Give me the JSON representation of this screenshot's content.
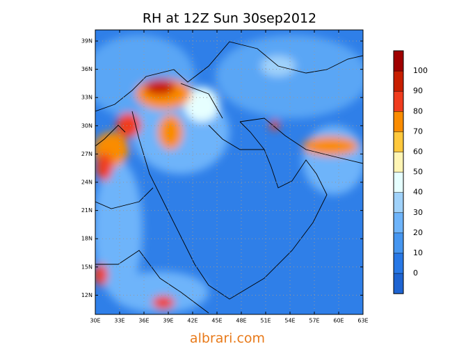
{
  "title": "RH at 12Z Sun 30sep2012",
  "map": {
    "x_labels": [
      "30E",
      "33E",
      "36E",
      "39E",
      "42E",
      "45E",
      "48E",
      "51E",
      "54E",
      "57E",
      "60E",
      "63E"
    ],
    "y_labels": [
      "39N",
      "36N",
      "33N",
      "30N",
      "27N",
      "24N",
      "21N",
      "18N",
      "15N",
      "12N"
    ]
  },
  "colorbar": {
    "labels": [
      100,
      90,
      80,
      70,
      60,
      50,
      40,
      30,
      20,
      10,
      0
    ]
  },
  "watermark": "albrari.com"
}
